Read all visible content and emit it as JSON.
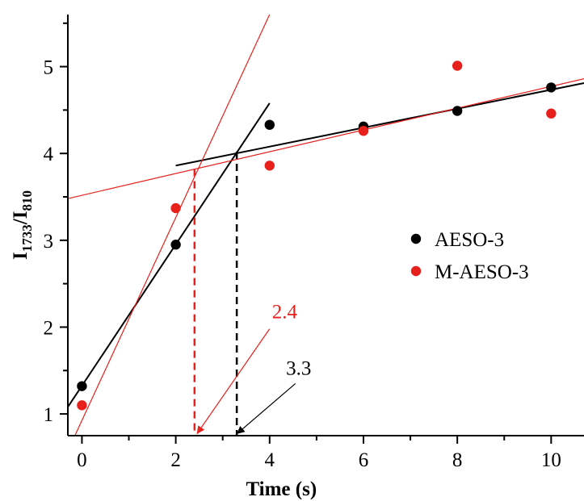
{
  "chart_data": {
    "type": "scatter",
    "xlabel": "Time (s)",
    "ylabel": {
      "main": "I",
      "sub1": "1733",
      "sep": "/I",
      "sub2": "810"
    },
    "xlim": [
      -0.3,
      10.7
    ],
    "ylim": [
      0.75,
      5.6
    ],
    "x_ticks": [
      0,
      2,
      4,
      6,
      8,
      10
    ],
    "y_ticks": [
      1,
      2,
      3,
      4,
      5
    ],
    "grid": false,
    "legend_position": "right",
    "colors": {
      "aeso": "#000000",
      "maeso": "#e8201b"
    },
    "series": [
      {
        "name": "AESO-3",
        "color": "#000000",
        "x": [
          0,
          2,
          4,
          6,
          8,
          10
        ],
        "y": [
          1.32,
          2.95,
          4.33,
          4.31,
          4.49,
          4.76
        ]
      },
      {
        "name": "M-AESO-3",
        "color": "#e8201b",
        "x": [
          0,
          2,
          4,
          6,
          8,
          10
        ],
        "y": [
          1.1,
          3.37,
          3.86,
          4.26,
          5.01,
          4.46
        ]
      }
    ],
    "fit_lines": [
      {
        "name": "aeso-initial-fit",
        "color": "#000000",
        "x1": -0.3,
        "y1": 1.08,
        "x2": 4.0,
        "y2": 4.58
      },
      {
        "name": "aeso-plateau-fit",
        "color": "#000000",
        "x1": 2.0,
        "y1": 3.86,
        "x2": 10.7,
        "y2": 4.81
      },
      {
        "name": "maeso-initial-fit",
        "color": "#e8201b",
        "x1": -0.15,
        "y1": 0.75,
        "x2": 4.0,
        "y2": 5.6
      },
      {
        "name": "maeso-plateau-fit",
        "color": "#e8201b",
        "x1": -0.3,
        "y1": 3.48,
        "x2": 10.7,
        "y2": 4.86
      }
    ],
    "annotations": [
      {
        "text": "2.4",
        "color": "#e8201b",
        "x_value": 2.4,
        "y_value": 3.82,
        "label_x": 4.05,
        "label_y": 2.1,
        "arrow_start_x": 4.0,
        "arrow_start_y": 1.98,
        "arrow_end_x": 2.45,
        "arrow_end_y": 0.77
      },
      {
        "text": "3.3",
        "color": "#000000",
        "x_value": 3.3,
        "y_value": 4.02,
        "label_x": 4.35,
        "label_y": 1.45,
        "arrow_start_x": 4.55,
        "arrow_start_y": 1.35,
        "arrow_end_x": 3.3,
        "arrow_end_y": 0.77
      }
    ]
  }
}
